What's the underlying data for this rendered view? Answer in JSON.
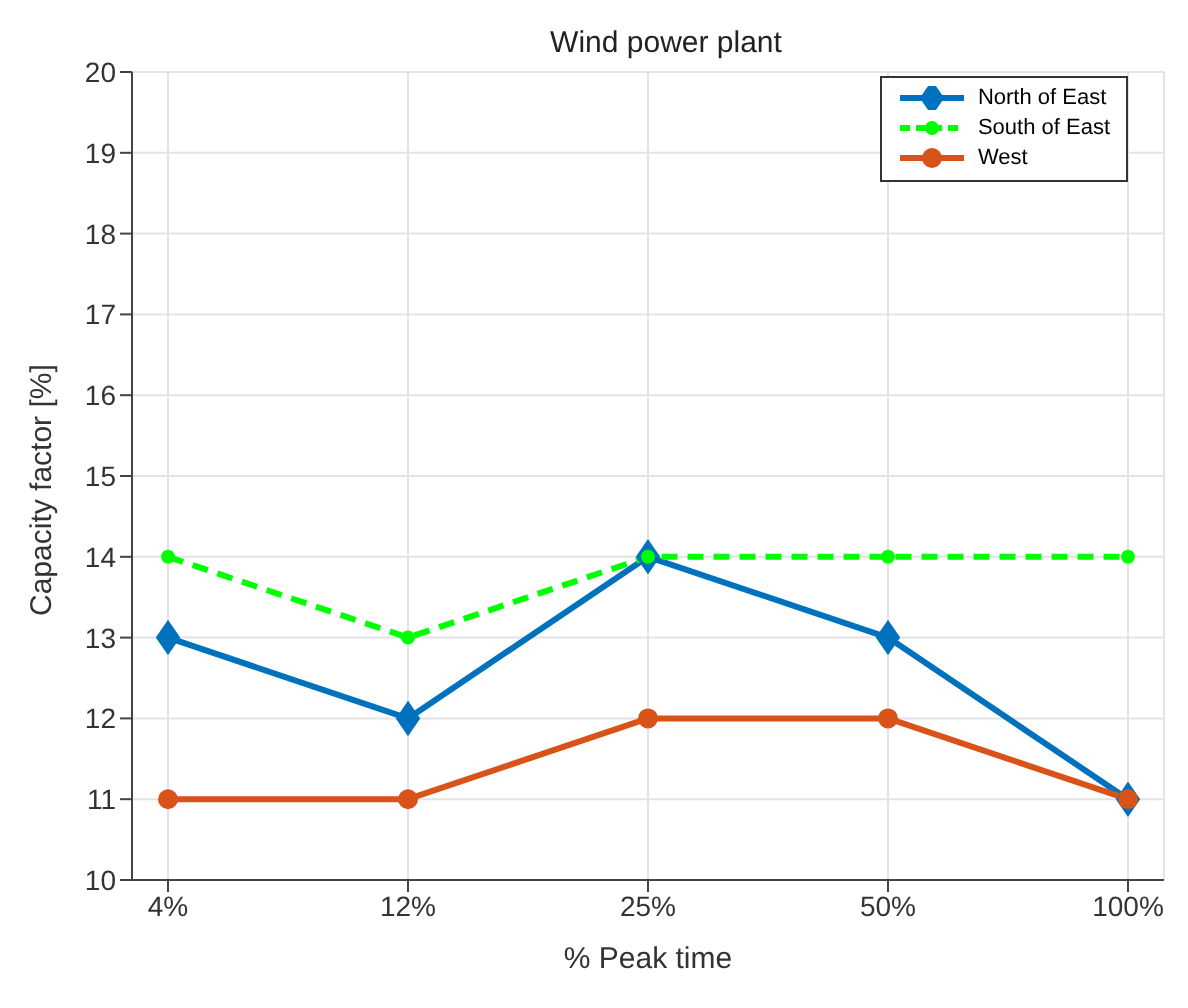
{
  "chart_data": {
    "type": "line",
    "title": "Wind power plant",
    "xlabel": "% Peak time",
    "ylabel": "Capacity factor [%]",
    "categories": [
      "4%",
      "12%",
      "25%",
      "50%",
      "100%"
    ],
    "series": [
      {
        "name": "North of East",
        "color": "#0072bd",
        "values": [
          13,
          12,
          14,
          13,
          11
        ],
        "marker": "diamond",
        "line_style": "solid"
      },
      {
        "name": "South of East",
        "color": "#00ff00",
        "values": [
          14,
          13,
          14,
          14,
          14
        ],
        "marker": "circle",
        "line_style": "dashed"
      },
      {
        "name": "West",
        "color": "#d95319",
        "values": [
          11,
          11,
          12,
          12,
          11
        ],
        "marker": "circle",
        "line_style": "solid"
      }
    ],
    "ylim": [
      10,
      20
    ],
    "yticks": [
      10,
      11,
      12,
      13,
      14,
      15,
      16,
      17,
      18,
      19,
      20
    ],
    "grid": true,
    "legend": "top right"
  }
}
